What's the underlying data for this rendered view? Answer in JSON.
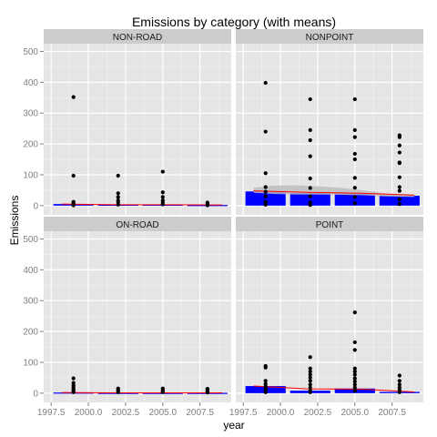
{
  "chart_data": {
    "type": "bar",
    "title": "Emissions by category (with means)",
    "xlabel": "year",
    "ylabel": "Emissions",
    "facet_layout": "2x2",
    "xlim": [
      1997.0,
      2009.6
    ],
    "ylim": [
      -30,
      525
    ],
    "xticks": [
      1997.5,
      2000.0,
      2002.5,
      2005.0,
      2007.5
    ],
    "xtick_labels": [
      "1997.5",
      "2000.0",
      "2002.5",
      "2005.0",
      "2007.5"
    ],
    "yticks": [
      0,
      100,
      200,
      300,
      400,
      500
    ],
    "ytick_labels": [
      "0",
      "100",
      "200",
      "300",
      "400",
      "500"
    ],
    "grid": true,
    "bar_width_years": 2.7,
    "mean_line_x_span": [
      1998.2,
      2009.0
    ],
    "colors": {
      "panel_bg": "#e5e5e5",
      "grid_major": "#ffffff",
      "grid_minor": "#f2f2f2",
      "strip_bg": "#cccccc",
      "bar": "#0000ff",
      "point": "#000000",
      "mean_line": "#ff0000",
      "band": "#bdbdbd"
    },
    "facets": [
      {
        "name": "NON-ROAD",
        "years": [
          1999,
          2002,
          2005,
          2008
        ],
        "bar_values": [
          5,
          3,
          3,
          2
        ],
        "mean_line": [
          5,
          3,
          3,
          2
        ],
        "band": null,
        "points": [
          [
            1999,
            352
          ],
          [
            1999,
            97
          ],
          [
            1999,
            12
          ],
          [
            1999,
            8
          ],
          [
            1999,
            4
          ],
          [
            1999,
            1
          ],
          [
            2002,
            97
          ],
          [
            2002,
            40
          ],
          [
            2002,
            28
          ],
          [
            2002,
            17
          ],
          [
            2002,
            10
          ],
          [
            2002,
            3
          ],
          [
            2005,
            110
          ],
          [
            2005,
            43
          ],
          [
            2005,
            28
          ],
          [
            2005,
            17
          ],
          [
            2005,
            10
          ],
          [
            2005,
            4
          ],
          [
            2008,
            10
          ],
          [
            2008,
            7
          ],
          [
            2008,
            4
          ],
          [
            2008,
            1
          ]
        ]
      },
      {
        "name": "NONPOINT",
        "years": [
          1999,
          2002,
          2005,
          2008
        ],
        "bar_values": [
          46,
          41,
          40,
          32
        ],
        "mean_line": [
          48,
          43,
          40,
          34
        ],
        "band": {
          "x": [
            1998.2,
            1999.5,
            2001,
            2002.5,
            2004,
            2005.5,
            2007,
            2009
          ],
          "upper": [
            58,
            65,
            66,
            63,
            58,
            50,
            40,
            36
          ],
          "lower": [
            42,
            38,
            36,
            36,
            35,
            34,
            30,
            28
          ]
        },
        "points": [
          [
            1999,
            398
          ],
          [
            1999,
            240
          ],
          [
            1999,
            105
          ],
          [
            1999,
            60
          ],
          [
            1999,
            45
          ],
          [
            1999,
            30
          ],
          [
            1999,
            12
          ],
          [
            1999,
            3
          ],
          [
            2002,
            345
          ],
          [
            2002,
            245
          ],
          [
            2002,
            212
          ],
          [
            2002,
            160
          ],
          [
            2002,
            88
          ],
          [
            2002,
            57
          ],
          [
            2002,
            30
          ],
          [
            2002,
            10
          ],
          [
            2002,
            2
          ],
          [
            2005,
            345
          ],
          [
            2005,
            245
          ],
          [
            2005,
            222
          ],
          [
            2005,
            168
          ],
          [
            2005,
            150
          ],
          [
            2005,
            90
          ],
          [
            2005,
            58
          ],
          [
            2005,
            28
          ],
          [
            2005,
            8
          ],
          [
            2008,
            228
          ],
          [
            2008,
            222
          ],
          [
            2008,
            195
          ],
          [
            2008,
            172
          ],
          [
            2008,
            140
          ],
          [
            2008,
            138
          ],
          [
            2008,
            92
          ],
          [
            2008,
            60
          ],
          [
            2008,
            48
          ],
          [
            2008,
            20
          ],
          [
            2008,
            5
          ]
        ]
      },
      {
        "name": "ON-ROAD",
        "years": [
          1999,
          2002,
          2005,
          2008
        ],
        "bar_values": [
          2,
          1,
          1,
          1
        ],
        "mean_line": [
          2,
          1,
          1,
          1
        ],
        "band": null,
        "points": [
          [
            1999,
            48
          ],
          [
            1999,
            33
          ],
          [
            1999,
            25
          ],
          [
            1999,
            18
          ],
          [
            1999,
            12
          ],
          [
            1999,
            7
          ],
          [
            1999,
            3
          ],
          [
            2002,
            15
          ],
          [
            2002,
            10
          ],
          [
            2002,
            6
          ],
          [
            2002,
            3
          ],
          [
            2005,
            15
          ],
          [
            2005,
            10
          ],
          [
            2005,
            6
          ],
          [
            2005,
            3
          ],
          [
            2008,
            14
          ],
          [
            2008,
            9
          ],
          [
            2008,
            5
          ],
          [
            2008,
            2
          ]
        ]
      },
      {
        "name": "POINT",
        "years": [
          1999,
          2002,
          2005,
          2008
        ],
        "bar_values": [
          23,
          8,
          15,
          4
        ],
        "mean_line": [
          23,
          14,
          13,
          4
        ],
        "band": null,
        "points": [
          [
            1999,
            88
          ],
          [
            1999,
            83
          ],
          [
            1999,
            40
          ],
          [
            1999,
            30
          ],
          [
            1999,
            22
          ],
          [
            1999,
            15
          ],
          [
            1999,
            8
          ],
          [
            1999,
            3
          ],
          [
            2002,
            117
          ],
          [
            2002,
            80
          ],
          [
            2002,
            70
          ],
          [
            2002,
            60
          ],
          [
            2002,
            50
          ],
          [
            2002,
            40
          ],
          [
            2002,
            28
          ],
          [
            2002,
            18
          ],
          [
            2002,
            8
          ],
          [
            2002,
            3
          ],
          [
            2005,
            262
          ],
          [
            2005,
            165
          ],
          [
            2005,
            140
          ],
          [
            2005,
            80
          ],
          [
            2005,
            70
          ],
          [
            2005,
            60
          ],
          [
            2005,
            48
          ],
          [
            2005,
            38
          ],
          [
            2005,
            28
          ],
          [
            2005,
            18
          ],
          [
            2005,
            8
          ],
          [
            2008,
            57
          ],
          [
            2008,
            40
          ],
          [
            2008,
            28
          ],
          [
            2008,
            18
          ],
          [
            2008,
            10
          ],
          [
            2008,
            3
          ]
        ]
      }
    ]
  }
}
